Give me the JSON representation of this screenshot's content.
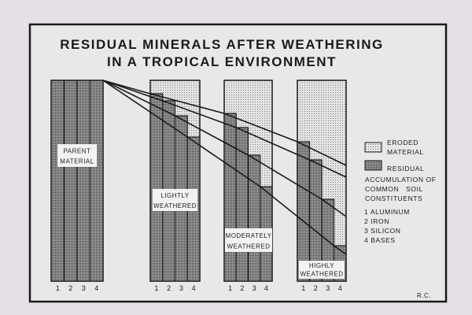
{
  "title": {
    "line1": "RESIDUAL MINERALS AFTER WEATHERING",
    "line2": "IN A TROPICAL ENVIRONMENT"
  },
  "bars": [
    {
      "label_line1": "PARENT",
      "label_line2": "MATERIAL",
      "numbers": [
        "1",
        "2",
        "3",
        "4"
      ]
    },
    {
      "label_line1": "LIGHTLY",
      "label_line2": "WEATHERED",
      "numbers": [
        "1",
        "2",
        "3",
        "4"
      ]
    },
    {
      "label_line1": "MODERATELY",
      "label_line2": "WEATHERED",
      "numbers": [
        "1",
        "2",
        "3",
        "4"
      ]
    },
    {
      "label_line1": "HIGHLY",
      "label_line2": "WEATHERED",
      "numbers": [
        "1",
        "2",
        "3",
        "4"
      ]
    }
  ],
  "legend": {
    "eroded_line1": "ERODED",
    "eroded_line2": "MATERIAL",
    "residual": "RESIDUAL",
    "desc_line1": "ACCUMULATION OF",
    "desc_line2": "COMMON   SOIL",
    "desc_line3": "CONSTITUENTS",
    "items": [
      "1 ALUMINUM",
      "2 IRON",
      "3 SILICON",
      "4 BASES"
    ]
  },
  "initials": "R.C.",
  "colors": {
    "background": "#e4e0e6",
    "panel": "#e8e8e8",
    "ink": "#1a1a1a"
  }
}
